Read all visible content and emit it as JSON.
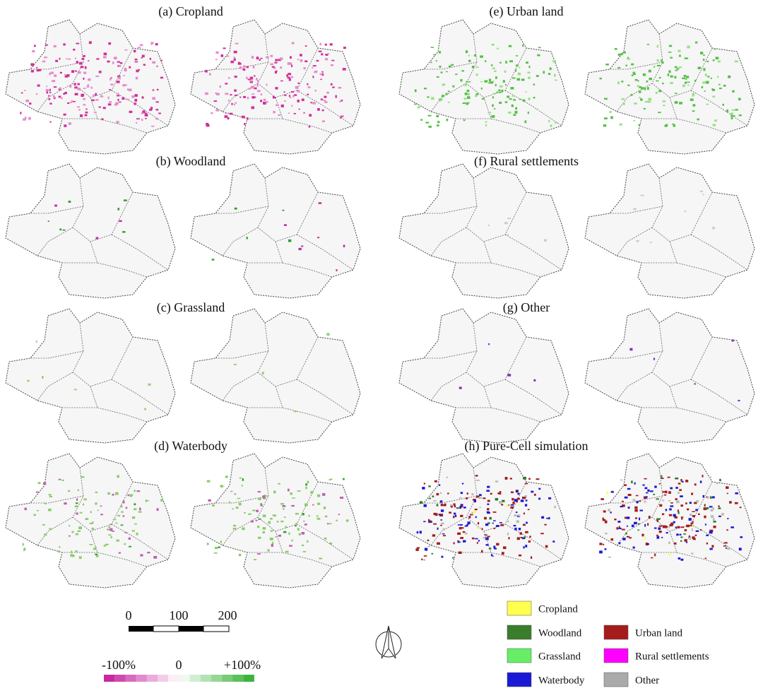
{
  "panels": [
    {
      "title": "(a) Cropland"
    },
    {
      "title": "(b) Woodland"
    },
    {
      "title": "(c) Grassland"
    },
    {
      "title": "(d) Waterbody"
    },
    {
      "title": "(e) Urban land"
    },
    {
      "title": "(f) Rural settlements"
    },
    {
      "title": "(g) Other"
    },
    {
      "title": "(h) Pure-Cell simulation"
    }
  ],
  "scale_bar": {
    "labels": [
      "0",
      "100",
      "200"
    ]
  },
  "colorbar": {
    "labels": [
      "-100%",
      "0",
      "+100%"
    ]
  },
  "legend": [
    {
      "label": "Cropland",
      "color": "#ffff4d"
    },
    {
      "label": "Woodland",
      "color": "#3a7d2a"
    },
    {
      "label": "Grassland",
      "color": "#66ee66"
    },
    {
      "label": "Waterbody",
      "color": "#1a1ad6"
    },
    {
      "label": "Urban land",
      "color": "#a51c1c"
    },
    {
      "label": "Rural settlements",
      "color": "#ff00ff"
    },
    {
      "label": "Other",
      "color": "#aaaaaa"
    }
  ]
}
